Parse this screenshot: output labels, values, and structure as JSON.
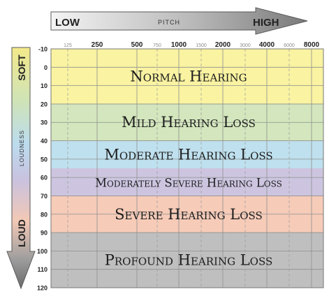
{
  "pitch_axis": {
    "low": "LOW",
    "mid": "PITCH",
    "high": "HIGH"
  },
  "loudness_axis": {
    "soft": "SOFT",
    "mid": "LOUDNESS",
    "loud": "LOUD"
  },
  "chart_data": {
    "type": "heatmap",
    "x_major_ticks": [
      "250",
      "500",
      "1000",
      "2000",
      "4000",
      "8000"
    ],
    "x_minor_ticks": [
      "125",
      "750",
      "1500",
      "3000",
      "6000"
    ],
    "x_scale": "log",
    "y_ticks": [
      "-10",
      "0",
      "10",
      "20",
      "30",
      "40",
      "50",
      "60",
      "70",
      "80",
      "90",
      "100",
      "110",
      "120"
    ],
    "ylim": [
      -10,
      120
    ],
    "y_inverted": true,
    "grid": true,
    "bands": [
      {
        "label": "Normal Hearing",
        "from": -10,
        "to": 20,
        "color": "#f9f3a2"
      },
      {
        "label": "Mild Hearing Loss",
        "from": 20,
        "to": 40,
        "color": "#d3e6bd"
      },
      {
        "label": "Moderate Hearing Loss",
        "from": 40,
        "to": 55,
        "color": "#bfe0ee"
      },
      {
        "label": "Moderately Severe Hearing Loss",
        "from": 55,
        "to": 70,
        "color": "#cdc5e0"
      },
      {
        "label": "Severe Hearing Loss",
        "from": 70,
        "to": 90,
        "color": "#f6cbb8"
      },
      {
        "label": "Profound Hearing Loss",
        "from": 90,
        "to": 120,
        "color": "#bfbfbf"
      }
    ]
  }
}
